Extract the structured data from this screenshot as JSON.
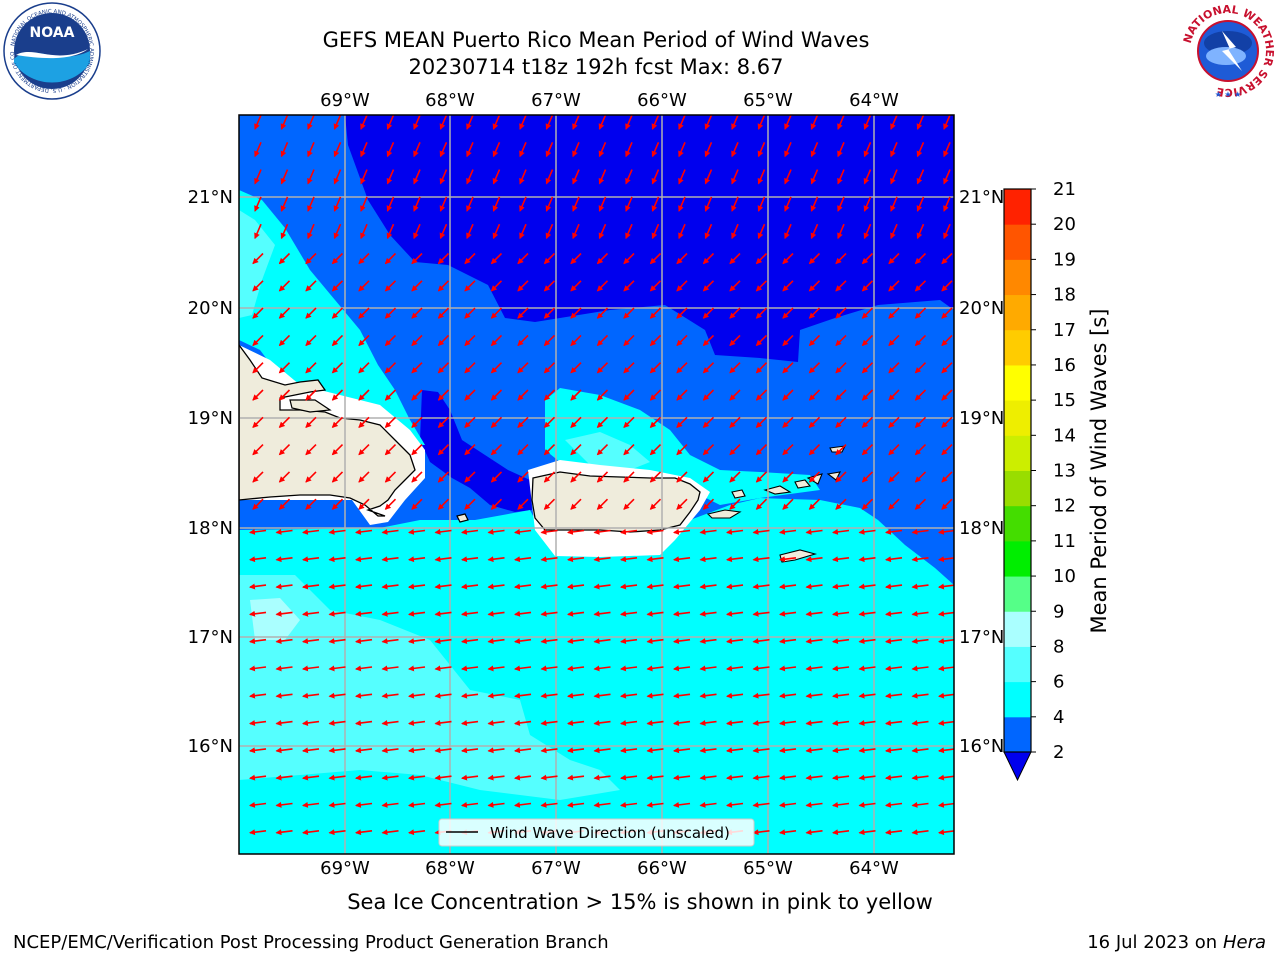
{
  "title": {
    "line1": "GEFS MEAN Puerto Rico Mean Period of Wind Waves",
    "line2": "20230714 t18z 192h fcst   Max: 8.67"
  },
  "logos": {
    "left": "NOAA",
    "left_ring_text": "NATIONAL OCEANIC AND ATMOSPHERIC ADMINISTRATION · U.S. DEPARTMENT OF COMMERCE",
    "right_ring_text": "NATIONAL WEATHER SERVICE"
  },
  "map": {
    "lon_labels": [
      "69°W",
      "68°W",
      "67°W",
      "66°W",
      "65°W",
      "64°W"
    ],
    "lat_labels": [
      "21°N",
      "20°N",
      "19°N",
      "18°N",
      "17°N",
      "16°N"
    ],
    "legend_label": "Wind Wave Direction (unscaled)",
    "colors": {
      "level_2_4": "#0066ff",
      "below_2": "#0000ee",
      "level_4_6": "#00ffff",
      "level_6_8": "#55ffff",
      "level_8_9": "#aaffff",
      "land": "#efecdc",
      "arrows": "#ff0000",
      "grid": "#b0b0b0"
    }
  },
  "colorbar": {
    "label": "Mean Period of Wind Waves [s]",
    "ticks": [
      "2",
      "4",
      "6",
      "8",
      "9",
      "10",
      "11",
      "12",
      "13",
      "14",
      "15",
      "16",
      "17",
      "18",
      "19",
      "20",
      "21"
    ],
    "colors": [
      "#0066ff",
      "#00ffff",
      "#55ffff",
      "#aaffff",
      "#55ff88",
      "#00ee00",
      "#44dd00",
      "#99dd00",
      "#ccee00",
      "#eeee00",
      "#ffff00",
      "#ffcc00",
      "#ffaa00",
      "#ff8800",
      "#ff5500",
      "#ff2200"
    ],
    "under_color": "#0000ee"
  },
  "caption": "Sea Ice Concentration > 15% is shown in pink to yellow",
  "footer": {
    "left": "NCEP/EMC/Verification Post Processing Product Generation Branch",
    "right_prefix": "16 Jul 2023 on ",
    "right_host": "Hera"
  }
}
